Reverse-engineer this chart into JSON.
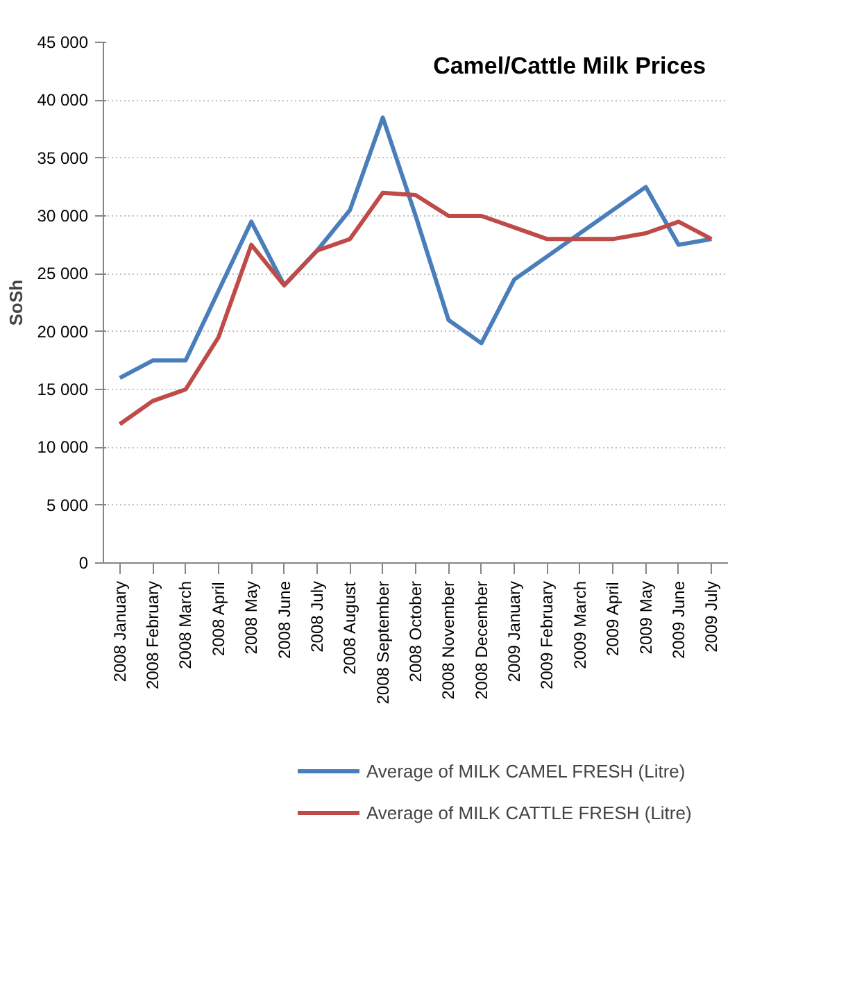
{
  "chart_data": {
    "type": "line",
    "title": "Camel/Cattle Milk Prices",
    "ylabel": "SoSh",
    "categories": [
      "2008 January",
      "2008 February",
      "2008 March",
      "2008 April",
      "2008 May",
      "2008 June",
      "2008 July",
      "2008 August",
      "2008 September",
      "2008 October",
      "2008 November",
      "2008 December",
      "2009 January",
      "2009 February",
      "2009 March",
      "2009 April",
      "2009 May",
      "2009 June",
      "2009 July"
    ],
    "series": [
      {
        "name": "Average of MILK CAMEL FRESH (Litre)",
        "color": "#4a7ebb",
        "values": [
          16000,
          17500,
          17500,
          23500,
          29500,
          24000,
          27000,
          30500,
          38500,
          30000,
          21000,
          19000,
          24500,
          26500,
          28500,
          30500,
          32500,
          27500,
          28000
        ]
      },
      {
        "name": "Average of MILK CATTLE FRESH (Litre)",
        "color": "#be4b48",
        "values": [
          12000,
          14000,
          15000,
          19500,
          27500,
          24000,
          27000,
          28000,
          32000,
          31800,
          30000,
          30000,
          29000,
          28000,
          28000,
          28000,
          28500,
          29500,
          28000
        ]
      }
    ],
    "ylim": [
      0,
      45000
    ],
    "yticks": [
      {
        "value": 0,
        "label": "0"
      },
      {
        "value": 5000,
        "label": "5 000"
      },
      {
        "value": 10000,
        "label": "10 000"
      },
      {
        "value": 15000,
        "label": "15 000"
      },
      {
        "value": 20000,
        "label": "20 000"
      },
      {
        "value": 25000,
        "label": "25 000"
      },
      {
        "value": 30000,
        "label": "30 000"
      },
      {
        "value": 35000,
        "label": "35 000"
      },
      {
        "value": 40000,
        "label": "40 000"
      },
      {
        "value": 45000,
        "label": "45 000"
      }
    ],
    "grid": "y",
    "legend": "bottom",
    "marker": "none",
    "line_style": "solid"
  }
}
